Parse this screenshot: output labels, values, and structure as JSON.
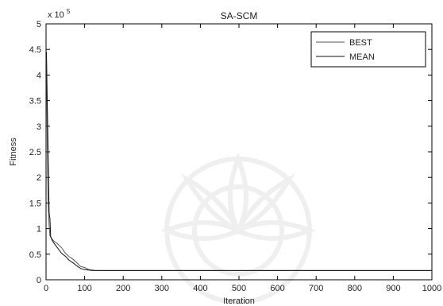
{
  "chart_data": {
    "type": "line",
    "title": "SA-SCM",
    "xlabel": "Iteration",
    "ylabel": "Fitness",
    "y_scale_note": "x 10",
    "y_scale_exponent": "5",
    "xlim": [
      0,
      1000
    ],
    "ylim": [
      0,
      5
    ],
    "x_ticks": [
      "0",
      "100",
      "200",
      "300",
      "400",
      "500",
      "600",
      "700",
      "800",
      "900",
      "1000"
    ],
    "y_ticks": [
      "0",
      "0.5",
      "1",
      "1.5",
      "2",
      "2.5",
      "3",
      "3.5",
      "4",
      "4.5",
      "5"
    ],
    "grid": false,
    "legend_position": "top-right",
    "series": [
      {
        "name": "BEST",
        "color": "#555555",
        "points": [
          [
            1,
            4.35
          ],
          [
            3,
            2.8
          ],
          [
            5,
            1.6
          ],
          [
            8,
            1.05
          ],
          [
            10,
            0.86
          ],
          [
            15,
            0.8
          ],
          [
            20,
            0.76
          ],
          [
            30,
            0.7
          ],
          [
            40,
            0.63
          ],
          [
            50,
            0.52
          ],
          [
            60,
            0.45
          ],
          [
            70,
            0.4
          ],
          [
            80,
            0.33
          ],
          [
            90,
            0.26
          ],
          [
            100,
            0.24
          ],
          [
            110,
            0.2
          ],
          [
            120,
            0.19
          ],
          [
            130,
            0.18
          ],
          [
            1000,
            0.18
          ]
        ]
      },
      {
        "name": "MEAN",
        "color": "#111111",
        "points": [
          [
            1,
            4.45
          ],
          [
            3,
            3.5
          ],
          [
            5,
            2.7
          ],
          [
            8,
            1.3
          ],
          [
            10,
            1.2
          ],
          [
            12,
            0.85
          ],
          [
            15,
            0.78
          ],
          [
            20,
            0.72
          ],
          [
            30,
            0.62
          ],
          [
            40,
            0.52
          ],
          [
            50,
            0.46
          ],
          [
            60,
            0.38
          ],
          [
            70,
            0.33
          ],
          [
            80,
            0.27
          ],
          [
            90,
            0.22
          ],
          [
            100,
            0.2
          ],
          [
            110,
            0.19
          ],
          [
            120,
            0.18
          ],
          [
            1000,
            0.18
          ]
        ]
      }
    ]
  },
  "watermark": {
    "description_name": "university-seal-watermark"
  }
}
